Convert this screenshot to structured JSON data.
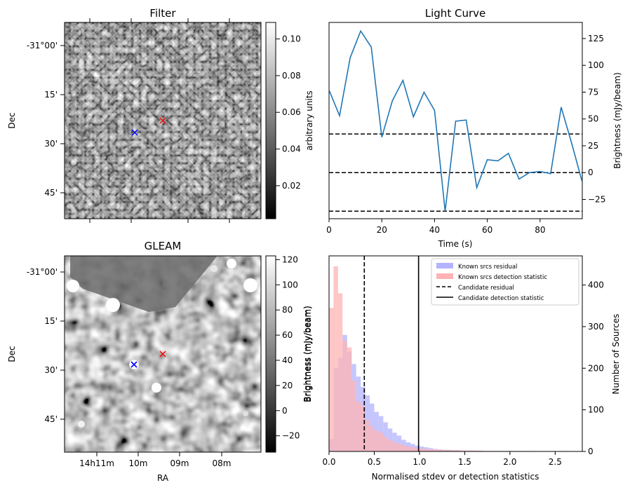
{
  "chart_data": [
    {
      "type": "image",
      "panel": "filter-map",
      "title": "Filter",
      "ylabel": "Dec",
      "yticks": [
        "-31°00'",
        "15'",
        "30'",
        "45'"
      ],
      "colorbar": {
        "label": "arbitrary units",
        "ticks": [
          "0.02",
          "0.04",
          "0.06",
          "0.08",
          "0.10"
        ],
        "range": [
          0.002,
          0.109
        ],
        "colormap": "grayscale"
      },
      "markers": [
        {
          "symbol": "x",
          "color": "#0000ff"
        },
        {
          "symbol": "x",
          "color": "#ff0000"
        }
      ]
    },
    {
      "type": "line",
      "panel": "light-curve",
      "title": "Light Curve",
      "xlabel": "Time (s)",
      "ylabel": "Brightness (mJy/beam)",
      "xlim": [
        0,
        96
      ],
      "ylim": [
        -43,
        140
      ],
      "xticks": [
        0,
        20,
        40,
        60,
        80
      ],
      "yticks": [
        -25,
        0,
        25,
        50,
        75,
        100,
        125
      ],
      "color": "#1f77b4",
      "x": [
        0,
        4,
        8,
        12,
        16,
        20,
        24,
        28,
        32,
        36,
        40,
        44,
        48,
        52,
        56,
        60,
        64,
        68,
        72,
        76,
        80,
        84,
        88,
        92,
        96
      ],
      "y": [
        77,
        53,
        107,
        132,
        117,
        33,
        67,
        86,
        52,
        75,
        58,
        -36,
        48,
        49,
        -14,
        12,
        11,
        18,
        -6,
        0,
        1,
        -1,
        61,
        27,
        -9
      ],
      "hlines": [
        36,
        0,
        -36
      ]
    },
    {
      "type": "image",
      "panel": "gleam-map",
      "title": "GLEAM",
      "xlabel": "RA",
      "ylabel": "Dec",
      "yticks": [
        "-31°00'",
        "15'",
        "30'",
        "45'"
      ],
      "xticks": [
        "14h11m",
        "10m",
        "09m",
        "08m"
      ],
      "colorbar": {
        "label": "Brightness (mJy/beam)",
        "ticks": [
          "−20",
          "0",
          "20",
          "40",
          "60",
          "80",
          "100",
          "120"
        ],
        "range": [
          -33,
          123
        ],
        "colormap": "grayscale"
      },
      "markers": [
        {
          "symbol": "x",
          "color": "#0000ff"
        },
        {
          "symbol": "x",
          "color": "#ff0000"
        }
      ]
    },
    {
      "type": "histogram",
      "panel": "stdev-histogram",
      "xlabel": "Normalised stdev or detection statistics",
      "ylabel": "Number of Sources",
      "xlim": [
        0,
        2.8
      ],
      "ylim": [
        0,
        470
      ],
      "xticks": [
        "0.0",
        "0.5",
        "1.0",
        "1.5",
        "2.0",
        "2.5"
      ],
      "yticks": [
        0,
        100,
        200,
        300,
        400
      ],
      "bin_width": 0.05,
      "bin_start": 0.0,
      "series": [
        {
          "name": "Known srcs residual",
          "color": "#b3b3ff",
          "counts": [
            30,
            200,
            225,
            280,
            240,
            210,
            180,
            155,
            135,
            115,
            95,
            85,
            70,
            55,
            45,
            38,
            28,
            22,
            18,
            14,
            12,
            10,
            8,
            6,
            5,
            4,
            4,
            3,
            3,
            2,
            2,
            2,
            2,
            1,
            1,
            1,
            1,
            1,
            1,
            1,
            1,
            0,
            0,
            0,
            0,
            0,
            0,
            0,
            0,
            0,
            0,
            0,
            0,
            0,
            0,
            0
          ]
        },
        {
          "name": "Known srcs detection statistic",
          "color": "#ffb3b3",
          "counts": [
            345,
            445,
            380,
            265,
            250,
            170,
            120,
            110,
            75,
            60,
            50,
            45,
            35,
            28,
            22,
            18,
            15,
            12,
            10,
            8,
            7,
            6,
            5,
            5,
            4,
            4,
            3,
            3,
            3,
            2,
            2,
            2,
            2,
            2,
            1,
            1,
            1,
            1,
            1,
            1,
            1,
            1,
            1,
            1,
            1,
            0,
            0,
            0,
            0,
            0,
            0,
            1,
            0,
            0,
            0,
            0
          ]
        }
      ],
      "vlines": [
        {
          "name": "Candidate residual",
          "x": 0.39,
          "style": "dashed"
        },
        {
          "name": "Candidate detection statistic",
          "x": 0.99,
          "style": "solid"
        }
      ],
      "left_axis_label": "Brightness (mJy/beam)",
      "legend_position": "top-right"
    }
  ]
}
